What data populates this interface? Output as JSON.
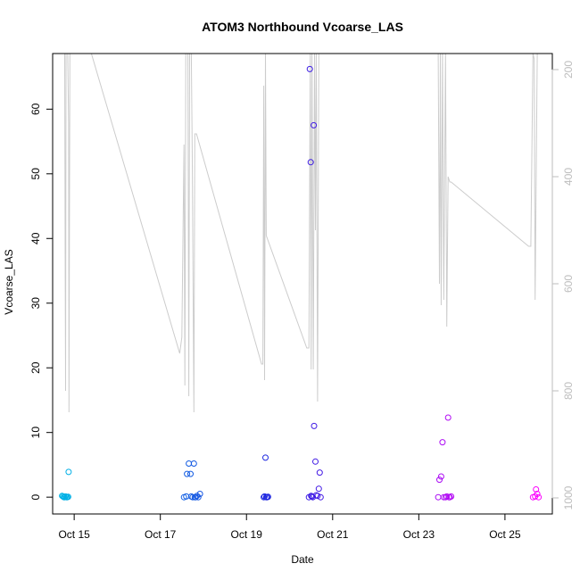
{
  "chart_data": {
    "type": "scatter",
    "title": "ATOM3 Northbound Vcoarse_LAS",
    "xlabel": "Date",
    "ylabel": "Vcoarse_LAS",
    "xlim": [
      14.5,
      26.1
    ],
    "ylim": [
      -2.6,
      68.6
    ],
    "y2lim": [
      1030,
      170
    ],
    "x_ticks": [
      {
        "value": 15,
        "label": "Oct 15"
      },
      {
        "value": 17,
        "label": "Oct 17"
      },
      {
        "value": 19,
        "label": "Oct 19"
      },
      {
        "value": 21,
        "label": "Oct 21"
      },
      {
        "value": 23,
        "label": "Oct 23"
      },
      {
        "value": 25,
        "label": "Oct 25"
      }
    ],
    "y_ticks": [
      0,
      10,
      20,
      30,
      40,
      50,
      60
    ],
    "y2_ticks": [
      200,
      400,
      600,
      800,
      1000
    ],
    "grid": false,
    "colors": {
      "points_start": "#00b4e6",
      "points_mid": "#2020e0",
      "points_end": "#ff00ff",
      "line": "#cccccc",
      "right_axis": "#bdbdbd"
    },
    "series": [
      {
        "type": "scatter",
        "points": [
          [
            14.72,
            0.2
          ],
          [
            14.74,
            0.1
          ],
          [
            14.76,
            0
          ],
          [
            14.78,
            0
          ],
          [
            14.8,
            0.1
          ],
          [
            14.82,
            0
          ],
          [
            14.84,
            0
          ],
          [
            14.86,
            0.05
          ],
          [
            14.87,
            3.9
          ],
          [
            17.55,
            0
          ],
          [
            17.6,
            0.1
          ],
          [
            17.62,
            3.6
          ],
          [
            17.66,
            5.2
          ],
          [
            17.7,
            3.6
          ],
          [
            17.72,
            0.1
          ],
          [
            17.75,
            0
          ],
          [
            17.78,
            5.2
          ],
          [
            17.8,
            0
          ],
          [
            17.82,
            0
          ],
          [
            17.85,
            0.2
          ],
          [
            17.88,
            0
          ],
          [
            17.92,
            0.5
          ],
          [
            19.4,
            0
          ],
          [
            19.42,
            0.1
          ],
          [
            19.44,
            6.1
          ],
          [
            19.46,
            0
          ],
          [
            19.48,
            0
          ],
          [
            19.5,
            0.05
          ],
          [
            20.45,
            0
          ],
          [
            20.47,
            66.2
          ],
          [
            20.49,
            51.8
          ],
          [
            20.5,
            0.2
          ],
          [
            20.52,
            0.1
          ],
          [
            20.54,
            0
          ],
          [
            20.56,
            57.5
          ],
          [
            20.57,
            11
          ],
          [
            20.6,
            5.5
          ],
          [
            20.62,
            0.3
          ],
          [
            20.65,
            0.2
          ],
          [
            20.68,
            1.3
          ],
          [
            20.7,
            3.8
          ],
          [
            20.72,
            0
          ],
          [
            23.45,
            0
          ],
          [
            23.48,
            2.7
          ],
          [
            23.52,
            3.2
          ],
          [
            23.55,
            8.5
          ],
          [
            23.58,
            0
          ],
          [
            23.62,
            0
          ],
          [
            23.65,
            0.1
          ],
          [
            23.68,
            12.3
          ],
          [
            23.7,
            0
          ],
          [
            23.72,
            0
          ],
          [
            23.75,
            0.1
          ],
          [
            25.65,
            0
          ],
          [
            25.7,
            0.1
          ],
          [
            25.72,
            1.2
          ],
          [
            25.75,
            0.5
          ],
          [
            25.78,
            0
          ]
        ]
      },
      {
        "type": "line",
        "axis": "right",
        "points": [
          [
            14.78,
            170
          ],
          [
            14.79,
            530
          ],
          [
            14.8,
            800
          ],
          [
            14.81,
            170
          ],
          [
            14.85,
            170
          ],
          [
            14.87,
            300
          ],
          [
            14.88,
            840
          ],
          [
            14.9,
            170
          ],
          [
            14.95,
            170
          ],
          [
            15.4,
            170
          ],
          [
            17.45,
            730
          ],
          [
            17.5,
            700
          ],
          [
            17.55,
            340
          ],
          [
            17.57,
            790
          ],
          [
            17.59,
            170
          ],
          [
            17.62,
            170
          ],
          [
            17.64,
            170
          ],
          [
            17.66,
            810
          ],
          [
            17.68,
            170
          ],
          [
            17.72,
            170
          ],
          [
            17.74,
            350
          ],
          [
            17.78,
            840
          ],
          [
            17.8,
            320
          ],
          [
            17.84,
            320
          ],
          [
            19.35,
            750
          ],
          [
            19.38,
            750
          ],
          [
            19.4,
            230
          ],
          [
            19.42,
            780
          ],
          [
            19.44,
            170
          ],
          [
            19.46,
            510
          ],
          [
            20.4,
            720
          ],
          [
            20.45,
            720
          ],
          [
            20.48,
            170
          ],
          [
            20.5,
            760
          ],
          [
            20.52,
            170
          ],
          [
            20.55,
            760
          ],
          [
            20.58,
            170
          ],
          [
            20.6,
            500
          ],
          [
            20.62,
            170
          ],
          [
            20.65,
            820
          ],
          [
            20.68,
            170
          ],
          [
            23.45,
            170
          ],
          [
            23.48,
            600
          ],
          [
            23.5,
            170
          ],
          [
            23.52,
            640
          ],
          [
            23.55,
            170
          ],
          [
            23.58,
            630
          ],
          [
            23.62,
            170
          ],
          [
            23.65,
            680
          ],
          [
            23.68,
            400
          ],
          [
            23.72,
            410
          ],
          [
            23.75,
            410
          ],
          [
            25.55,
            530
          ],
          [
            25.6,
            530
          ],
          [
            25.65,
            170
          ],
          [
            25.68,
            180
          ],
          [
            25.7,
            630
          ],
          [
            25.75,
            170
          ]
        ]
      }
    ]
  }
}
